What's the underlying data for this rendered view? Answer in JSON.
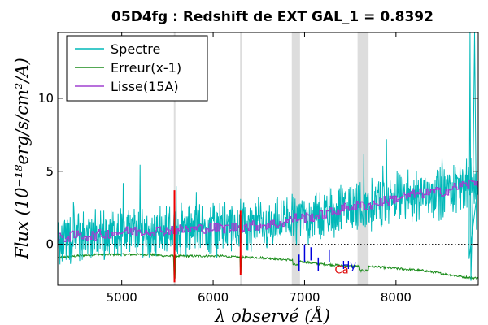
{
  "chart_data": {
    "type": "line",
    "title": "05D4fg : Redshift de EXT GAL_1 = 0.8392",
    "xlabel": "λ observé (Å)",
    "ylabel": "Flux (10⁻¹⁸erg/s/cm²/A)",
    "xlim": [
      4300,
      8900
    ],
    "ylim": [
      -2.8,
      14.5
    ],
    "xticks": [
      "5000",
      "6000",
      "7000",
      "8000"
    ],
    "xtick_values": [
      5000,
      6000,
      7000,
      8000
    ],
    "yticks": [
      "0",
      "5",
      "10"
    ],
    "ytick_values": [
      0,
      5,
      10
    ],
    "grid": false,
    "legend_position": "top-left",
    "zero_line": "dotted",
    "series": [
      {
        "name": "Spectre",
        "color": "#00b8b8",
        "style": "noisy",
        "x": [
          4300,
          4500,
          4700,
          4900,
          5100,
          5300,
          5500,
          5700,
          5900,
          6100,
          6300,
          6500,
          6700,
          6900,
          7100,
          7300,
          7500,
          7700,
          7900,
          8100,
          8300,
          8500,
          8700,
          8850
        ],
        "values": [
          0.4,
          0.6,
          0.6,
          0.8,
          0.9,
          0.9,
          1.0,
          1.0,
          1.1,
          1.1,
          1.2,
          1.3,
          1.4,
          1.8,
          1.9,
          2.2,
          2.6,
          2.7,
          3.0,
          3.3,
          3.5,
          3.6,
          4.0,
          4.2
        ],
        "noise": 1.4
      },
      {
        "name": "Erreur(x-1)",
        "color": "#1a8c1a",
        "style": "smooth",
        "x": [
          4300,
          4500,
          4700,
          4900,
          5100,
          5300,
          5500,
          5700,
          5900,
          6100,
          6300,
          6500,
          6700,
          6900,
          7100,
          7300,
          7500,
          7700,
          7900,
          8100,
          8300,
          8500,
          8700,
          8850
        ],
        "values": [
          -0.9,
          -0.8,
          -0.7,
          -0.7,
          -0.7,
          -0.7,
          -0.8,
          -0.8,
          -0.8,
          -0.8,
          -0.9,
          -0.9,
          -1.0,
          -1.1,
          -1.3,
          -1.4,
          -1.5,
          -1.5,
          -1.6,
          -1.7,
          -1.8,
          -2.0,
          -2.2,
          -2.3
        ],
        "noise": 0.15
      },
      {
        "name": "Lisse(15A)",
        "color": "#a040d0",
        "style": "step",
        "x": [
          4300,
          4500,
          4700,
          4900,
          5100,
          5300,
          5500,
          5700,
          5900,
          6100,
          6300,
          6500,
          6700,
          6900,
          7100,
          7300,
          7500,
          7700,
          7900,
          8100,
          8300,
          8500,
          8700,
          8850
        ],
        "values": [
          0.4,
          0.6,
          0.6,
          0.8,
          0.9,
          0.9,
          1.0,
          1.0,
          1.1,
          1.1,
          1.2,
          1.3,
          1.4,
          1.8,
          1.9,
          2.2,
          2.6,
          2.7,
          3.0,
          3.3,
          3.5,
          3.6,
          4.0,
          4.2
        ],
        "noise": 0.35
      }
    ],
    "sky_line_bands": [
      {
        "x0": 5570,
        "x1": 5585,
        "color": "#dddddd"
      },
      {
        "x0": 6295,
        "x1": 6310,
        "color": "#dddddd"
      },
      {
        "x0": 6860,
        "x1": 6950,
        "color": "#dddddd"
      },
      {
        "x0": 7580,
        "x1": 7700,
        "color": "#dddddd"
      }
    ],
    "red_lines": [
      {
        "x": 5577,
        "y0": -2.6,
        "y1": 3.7
      },
      {
        "x": 6300,
        "y0": -2.1,
        "y1": 2.3
      }
    ],
    "blue_markers": [
      {
        "x": 6940,
        "y0": -1.8,
        "y1": -0.7
      },
      {
        "x": 7000,
        "y0": -1.2,
        "y1": 0.0
      },
      {
        "x": 7070,
        "y0": -1.1,
        "y1": -0.2
      },
      {
        "x": 7150,
        "y0": -1.8,
        "y1": -0.9
      },
      {
        "x": 7270,
        "y0": -1.2,
        "y1": -0.4
      }
    ],
    "annotations": [
      {
        "text": "Ca",
        "x": 7330,
        "y": -2.0,
        "color": "#dd0000"
      },
      {
        "text": "Hy",
        "x": 7410,
        "y": -1.7,
        "color": "#0000dd"
      }
    ],
    "legend_colors": {
      "frame": "#000000"
    }
  }
}
